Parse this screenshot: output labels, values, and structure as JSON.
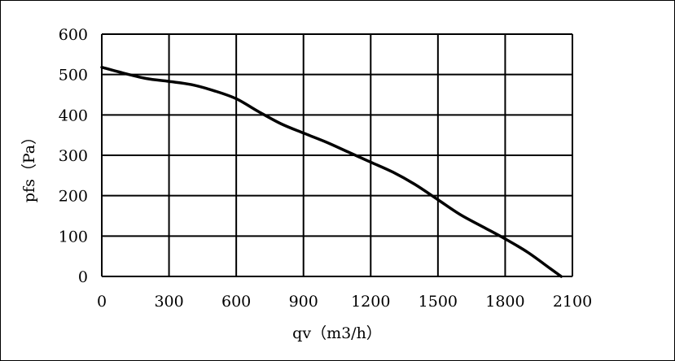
{
  "chart_data": {
    "type": "line",
    "xlabel": "qv（m3/h）",
    "ylabel": "pfs（Pa）",
    "xlim": [
      0,
      2100
    ],
    "ylim": [
      0,
      600
    ],
    "xticks": [
      "0",
      "300",
      "600",
      "900",
      "1200",
      "1500",
      "1800",
      "2100"
    ],
    "yticks": [
      "0",
      "100",
      "200",
      "300",
      "400",
      "500",
      "600"
    ],
    "grid": true,
    "legend": "none",
    "line_color": "#000000",
    "series": [
      {
        "x": [
          0,
          100,
          200,
          300,
          400,
          500,
          600,
          700,
          800,
          900,
          1000,
          1100,
          1200,
          1300,
          1400,
          1500,
          1600,
          1700,
          1800,
          1900,
          2000,
          2050
        ],
        "values": [
          518,
          503,
          490,
          483,
          475,
          460,
          440,
          408,
          378,
          355,
          333,
          308,
          283,
          258,
          227,
          190,
          153,
          123,
          93,
          60,
          20,
          0
        ]
      }
    ]
  }
}
